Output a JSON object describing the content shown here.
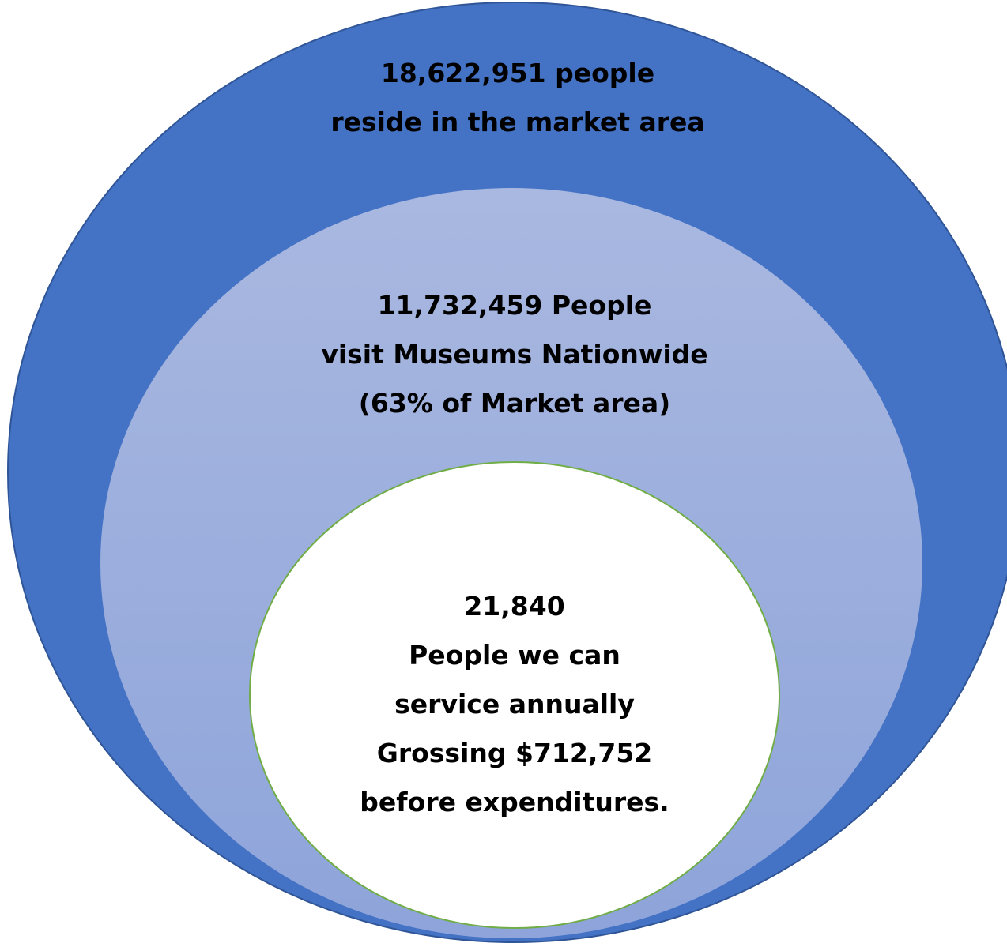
{
  "diagram": {
    "outer": {
      "lines": [
        "18,622,951 people",
        "reside in the market area"
      ],
      "fill_top": "#4472C4",
      "fill_bottom": "#4472C4",
      "stroke": "#2F5597"
    },
    "middle": {
      "lines": [
        "11,732,459 People",
        "visit Museums Nationwide",
        "(63% of Market area)"
      ],
      "fill_top": "#A9B8E0",
      "fill_bottom": "#8EA4DA"
    },
    "inner": {
      "lines": [
        "21,840",
        "People we can",
        "service annually",
        "Grossing $712,752",
        "before expenditures."
      ],
      "fill": "#FFFFFF",
      "stroke": "#70AD47"
    }
  }
}
